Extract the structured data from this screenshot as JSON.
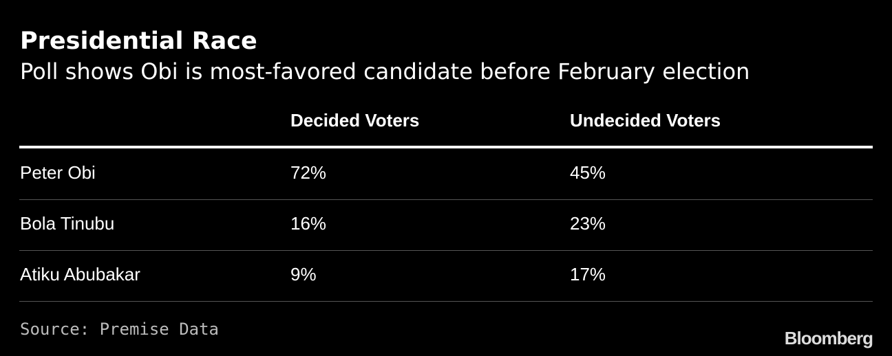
{
  "header": {
    "title": "Presidential Race",
    "subtitle": "Poll shows Obi is most-favored candidate before February election"
  },
  "table": {
    "columns": [
      "Decided Voters",
      "Undecided Voters"
    ],
    "rows": [
      [
        "Peter Obi",
        "72%",
        "45%"
      ],
      [
        "Bola Tinubu",
        "16%",
        "23%"
      ],
      [
        "Atiku Abubakar",
        "9%",
        "17%"
      ]
    ]
  },
  "footer": {
    "source": "Source: Premise Data",
    "logo": "Bloomberg"
  }
}
